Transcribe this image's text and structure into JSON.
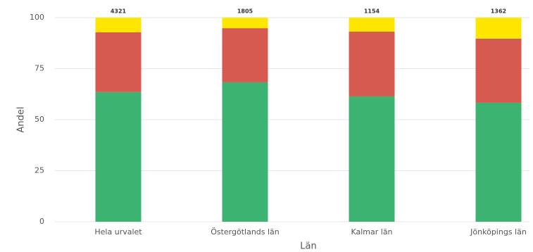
{
  "chart_data": {
    "type": "stacked_bar",
    "categories": [
      "Hela urvalet",
      "Östergötlands län",
      "Kalmar län",
      "Jönköpings län"
    ],
    "series": [
      {
        "color": "#3cb371",
        "values": [
          63.5,
          68.3,
          61.4,
          58.3
        ]
      },
      {
        "color": "#d65a4f",
        "values": [
          29.3,
          26.5,
          31.7,
          31.4
        ]
      },
      {
        "color": "#ffe600",
        "values": [
          7.2,
          5.2,
          6.9,
          10.3
        ]
      }
    ],
    "annotations": [
      4321,
      1805,
      1154,
      1362
    ],
    "ylim": [
      0,
      100
    ],
    "yticks": [
      0,
      25,
      50,
      75,
      100
    ],
    "grid": true,
    "xlabel": "Län",
    "ylabel": "Andel"
  }
}
